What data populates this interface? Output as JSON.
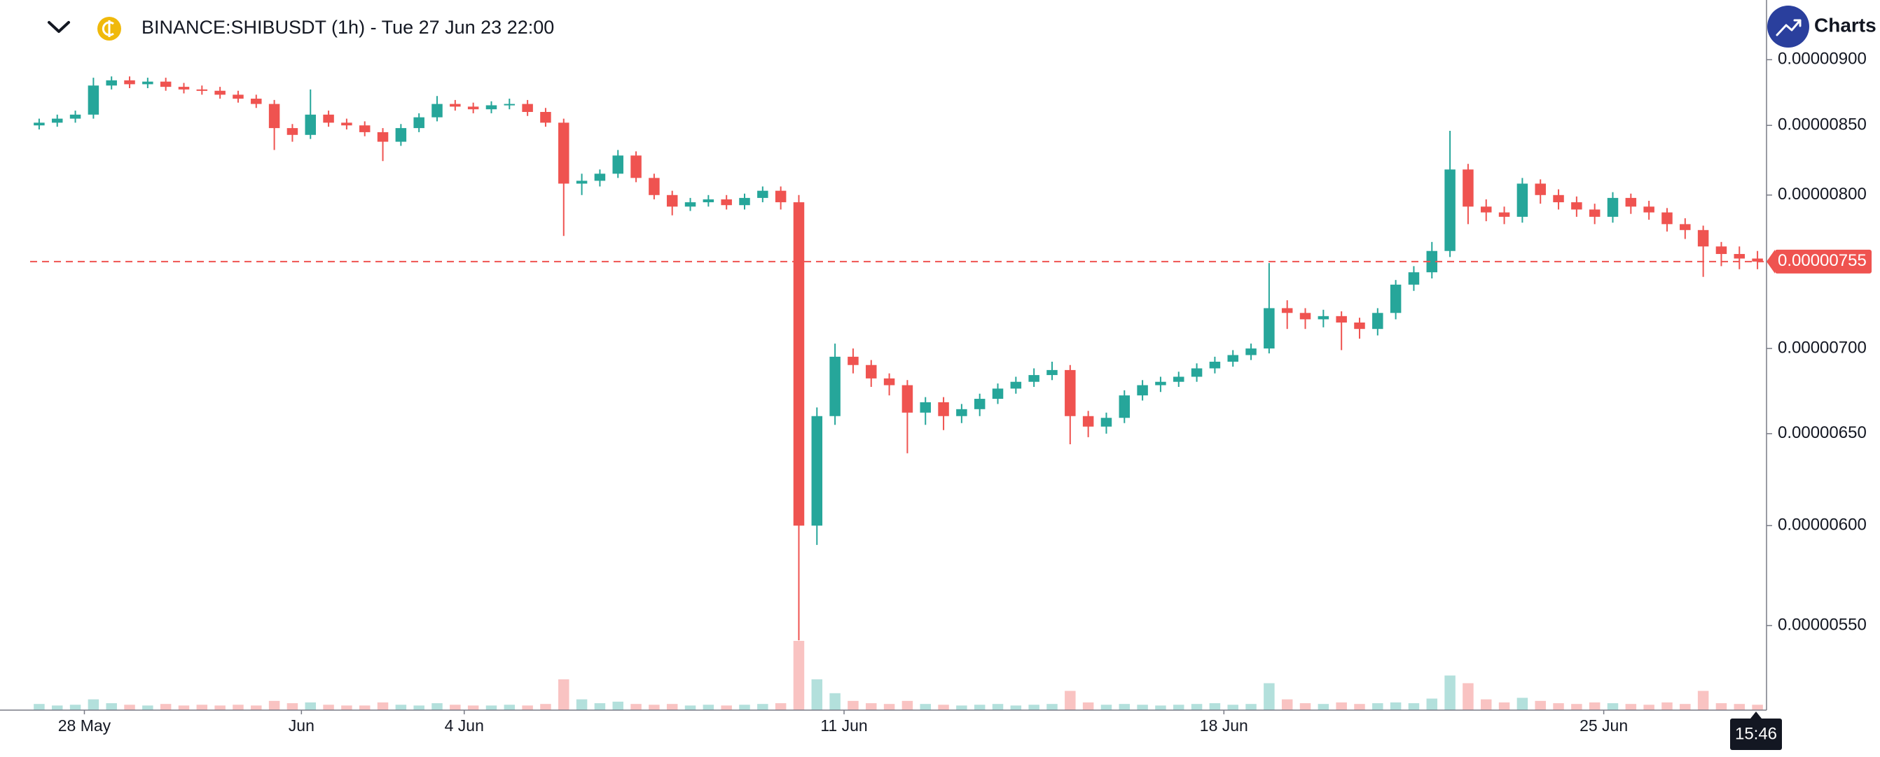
{
  "branding": "Charts p",
  "chart_data": {
    "type": "candlestick",
    "title": "BINANCE:SHIBUSDT (1h) - Tue 27 Jun 23 22:00",
    "categories": [
      null,
      null,
      null,
      "28 May",
      null,
      null,
      null,
      null,
      null,
      null,
      null,
      null,
      null,
      null,
      null,
      "Jun",
      null,
      null,
      null,
      null,
      null,
      null,
      null,
      null,
      "4 Jun",
      null,
      null,
      null,
      null,
      null,
      null,
      null,
      null,
      null,
      null,
      null,
      null,
      null,
      null,
      null,
      null,
      null,
      null,
      null,
      null,
      "11 Jun",
      null,
      null,
      null,
      null,
      null,
      null,
      null,
      null,
      null,
      null,
      null,
      null,
      null,
      null,
      null,
      null,
      null,
      null,
      null,
      null,
      "18 Jun",
      null,
      null,
      null,
      null,
      null,
      null,
      null,
      null,
      null,
      null,
      null,
      null,
      null,
      null,
      null,
      null,
      null,
      null,
      null,
      null,
      "25 Jun",
      null,
      null,
      null,
      null,
      null,
      null,
      null,
      null
    ],
    "open": [
      8.5e-06,
      8.52e-06,
      8.55e-06,
      8.58e-06,
      8.8e-06,
      8.84e-06,
      8.81e-06,
      8.83e-06,
      8.79e-06,
      8.77e-06,
      8.76e-06,
      8.73e-06,
      8.7e-06,
      8.66e-06,
      8.48e-06,
      8.43e-06,
      8.58e-06,
      8.52e-06,
      8.5e-06,
      8.45e-06,
      8.38e-06,
      8.48e-06,
      8.56e-06,
      8.66e-06,
      8.64e-06,
      8.62e-06,
      8.65e-06,
      8.66e-06,
      8.6e-06,
      8.52e-06,
      8.08e-06,
      8.1e-06,
      8.15e-06,
      8.28e-06,
      8.12e-06,
      8e-06,
      7.92e-06,
      7.95e-06,
      7.97e-06,
      7.93e-06,
      7.98e-06,
      8.03e-06,
      7.95e-06,
      6e-06,
      6.6e-06,
      6.95e-06,
      6.9e-06,
      6.82e-06,
      6.78e-06,
      6.62e-06,
      6.68e-06,
      6.6e-06,
      6.64e-06,
      6.7e-06,
      6.76e-06,
      6.8e-06,
      6.84e-06,
      6.87e-06,
      6.6e-06,
      6.54e-06,
      6.59e-06,
      6.72e-06,
      6.78e-06,
      6.8e-06,
      6.83e-06,
      6.88e-06,
      6.92e-06,
      6.96e-06,
      7e-06,
      7.25e-06,
      7.22e-06,
      7.18e-06,
      7.2e-06,
      7.16e-06,
      7.12e-06,
      7.22e-06,
      7.4e-06,
      7.48e-06,
      7.62e-06,
      8.18e-06,
      7.92e-06,
      7.88e-06,
      7.85e-06,
      8.08e-06,
      8e-06,
      7.95e-06,
      7.9e-06,
      7.85e-06,
      7.98e-06,
      7.92e-06,
      7.88e-06,
      7.8e-06,
      7.76e-06,
      7.65e-06,
      7.6e-06,
      7.57e-06
    ],
    "high": [
      8.55e-06,
      8.58e-06,
      8.61e-06,
      8.86e-06,
      8.87e-06,
      8.87e-06,
      8.86e-06,
      8.86e-06,
      8.82e-06,
      8.8e-06,
      8.79e-06,
      8.76e-06,
      8.73e-06,
      8.69e-06,
      8.51e-06,
      8.77e-06,
      8.61e-06,
      8.55e-06,
      8.53e-06,
      8.48e-06,
      8.51e-06,
      8.59e-06,
      8.72e-06,
      8.69e-06,
      8.67e-06,
      8.68e-06,
      8.7e-06,
      8.69e-06,
      8.63e-06,
      8.55e-06,
      8.15e-06,
      8.18e-06,
      8.32e-06,
      8.31e-06,
      8.15e-06,
      8.03e-06,
      7.98e-06,
      8e-06,
      8e-06,
      8.01e-06,
      8.06e-06,
      8.06e-06,
      8e-06,
      6.65e-06,
      7.03e-06,
      7e-06,
      6.93e-06,
      6.85e-06,
      6.81e-06,
      6.71e-06,
      6.71e-06,
      6.67e-06,
      6.73e-06,
      6.79e-06,
      6.83e-06,
      6.88e-06,
      6.92e-06,
      6.9e-06,
      6.63e-06,
      6.62e-06,
      6.75e-06,
      6.81e-06,
      6.83e-06,
      6.86e-06,
      6.91e-06,
      6.95e-06,
      6.99e-06,
      7.03e-06,
      7.54e-06,
      7.3e-06,
      7.25e-06,
      7.24e-06,
      7.23e-06,
      7.19e-06,
      7.25e-06,
      7.43e-06,
      7.52e-06,
      7.68e-06,
      8.46e-06,
      8.22e-06,
      7.97e-06,
      7.92e-06,
      8.12e-06,
      8.11e-06,
      8.04e-06,
      7.99e-06,
      7.94e-06,
      8.02e-06,
      8.01e-06,
      7.96e-06,
      7.91e-06,
      7.84e-06,
      7.79e-06,
      7.68e-06,
      7.65e-06,
      7.62e-06
    ],
    "low": [
      8.47e-06,
      8.49e-06,
      8.52e-06,
      8.55e-06,
      8.77e-06,
      8.78e-06,
      8.78e-06,
      8.76e-06,
      8.74e-06,
      8.73e-06,
      8.7e-06,
      8.67e-06,
      8.63e-06,
      8.32e-06,
      8.38e-06,
      8.4e-06,
      8.49e-06,
      8.47e-06,
      8.42e-06,
      8.24e-06,
      8.35e-06,
      8.45e-06,
      8.53e-06,
      8.61e-06,
      8.59e-06,
      8.59e-06,
      8.62e-06,
      8.57e-06,
      8.49e-06,
      7.72e-06,
      8e-06,
      8.06e-06,
      8.12e-06,
      8.09e-06,
      7.97e-06,
      7.86e-06,
      7.89e-06,
      7.92e-06,
      7.9e-06,
      7.9e-06,
      7.95e-06,
      7.9e-06,
      5.43e-06,
      5.9e-06,
      6.55e-06,
      6.85e-06,
      6.77e-06,
      6.72e-06,
      6.39e-06,
      6.55e-06,
      6.52e-06,
      6.56e-06,
      6.6e-06,
      6.67e-06,
      6.73e-06,
      6.77e-06,
      6.81e-06,
      6.44e-06,
      6.48e-06,
      6.5e-06,
      6.56e-06,
      6.69e-06,
      6.74e-06,
      6.77e-06,
      6.8e-06,
      6.85e-06,
      6.89e-06,
      6.93e-06,
      6.97e-06,
      7.12e-06,
      7.12e-06,
      7.13e-06,
      6.99e-06,
      7.06e-06,
      7.08e-06,
      7.18e-06,
      7.36e-06,
      7.44e-06,
      7.58e-06,
      7.8e-06,
      7.82e-06,
      7.8e-06,
      7.81e-06,
      7.94e-06,
      7.9e-06,
      7.85e-06,
      7.8e-06,
      7.81e-06,
      7.87e-06,
      7.83e-06,
      7.75e-06,
      7.7e-06,
      7.45e-06,
      7.52e-06,
      7.5e-06,
      7.5e-06
    ],
    "close": [
      8.52e-06,
      8.55e-06,
      8.58e-06,
      8.8e-06,
      8.84e-06,
      8.81e-06,
      8.83e-06,
      8.79e-06,
      8.77e-06,
      8.76e-06,
      8.73e-06,
      8.7e-06,
      8.66e-06,
      8.48e-06,
      8.43e-06,
      8.58e-06,
      8.52e-06,
      8.5e-06,
      8.45e-06,
      8.38e-06,
      8.48e-06,
      8.56e-06,
      8.66e-06,
      8.64e-06,
      8.62e-06,
      8.65e-06,
      8.66e-06,
      8.6e-06,
      8.52e-06,
      8.08e-06,
      8.1e-06,
      8.15e-06,
      8.28e-06,
      8.12e-06,
      8e-06,
      7.92e-06,
      7.95e-06,
      7.97e-06,
      7.93e-06,
      7.98e-06,
      8.03e-06,
      7.95e-06,
      6e-06,
      6.6e-06,
      6.95e-06,
      6.9e-06,
      6.82e-06,
      6.78e-06,
      6.62e-06,
      6.68e-06,
      6.6e-06,
      6.64e-06,
      6.7e-06,
      6.76e-06,
      6.8e-06,
      6.84e-06,
      6.87e-06,
      6.6e-06,
      6.54e-06,
      6.59e-06,
      6.72e-06,
      6.78e-06,
      6.8e-06,
      6.83e-06,
      6.88e-06,
      6.92e-06,
      6.96e-06,
      7e-06,
      7.25e-06,
      7.22e-06,
      7.18e-06,
      7.2e-06,
      7.16e-06,
      7.12e-06,
      7.22e-06,
      7.4e-06,
      7.48e-06,
      7.62e-06,
      8.18e-06,
      7.92e-06,
      7.88e-06,
      7.85e-06,
      8.08e-06,
      8e-06,
      7.95e-06,
      7.9e-06,
      7.85e-06,
      7.98e-06,
      7.92e-06,
      7.88e-06,
      7.8e-06,
      7.76e-06,
      7.65e-06,
      7.6e-06,
      7.57e-06,
      7.55e-06
    ],
    "volume": [
      8,
      6,
      7,
      14,
      9,
      7,
      6,
      8,
      6,
      7,
      6,
      7,
      6,
      12,
      9,
      10,
      7,
      6,
      6,
      10,
      7,
      6,
      9,
      7,
      6,
      6,
      7,
      6,
      8,
      40,
      14,
      9,
      11,
      8,
      7,
      8,
      6,
      7,
      6,
      7,
      8,
      9,
      90,
      40,
      22,
      12,
      9,
      8,
      12,
      8,
      7,
      6,
      7,
      8,
      6,
      7,
      8,
      25,
      10,
      7,
      8,
      7,
      6,
      7,
      8,
      9,
      7,
      8,
      35,
      14,
      9,
      8,
      10,
      8,
      9,
      10,
      9,
      15,
      45,
      35,
      14,
      10,
      16,
      12,
      9,
      8,
      10,
      9,
      8,
      7,
      10,
      8,
      25,
      9,
      8,
      7
    ],
    "volume_ylim": [
      0,
      100
    ],
    "up_color": "#26a69a",
    "down_color": "#ef5350",
    "log_scale": true,
    "ylim": [
      5.11e-06,
      9.48e-06
    ],
    "yticks": [
      {
        "value": 5.5e-06,
        "label": "0.00000550"
      },
      {
        "value": 6e-06,
        "label": "0.00000600"
      },
      {
        "value": 6.5e-06,
        "label": "0.00000650"
      },
      {
        "value": 7e-06,
        "label": "0.00000700"
      },
      {
        "value": 8e-06,
        "label": "0.00000800"
      },
      {
        "value": 8.5e-06,
        "label": "0.00000850"
      },
      {
        "value": 9e-06,
        "label": "0.00000900"
      }
    ],
    "last_price": {
      "value": 7.55e-06,
      "label": "0.00000755"
    },
    "time_label": "15:46"
  }
}
